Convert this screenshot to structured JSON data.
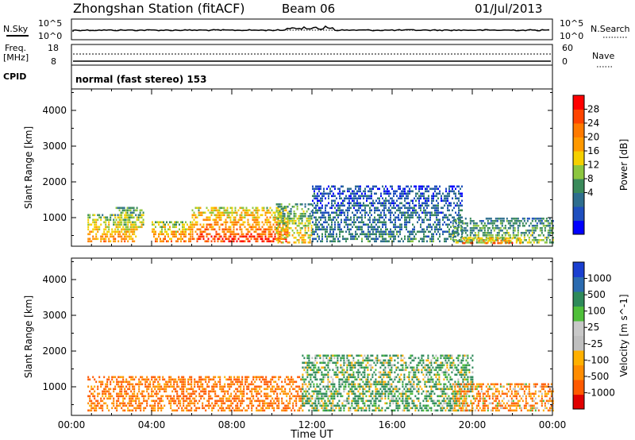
{
  "header": {
    "station": "Zhongshan Station (fitACF)",
    "beam": "Beam 06",
    "date": "01/Jul/2013"
  },
  "top_panels": {
    "nsky_label": "N.Sky",
    "nsky_ticks": [
      "10^5",
      "10^0"
    ],
    "nsearch_label": "N.Search",
    "nsearch_ticks": [
      "10^5",
      "10^0"
    ],
    "freq_label": "Freq.",
    "freq_unit": "[MHz]",
    "freq_ticks": [
      "18",
      "8"
    ],
    "nave_label": "Nave",
    "nave_ticks": [
      "60",
      "0"
    ],
    "cpid_label": "CPID",
    "cpid_value": "normal (fast stereo) 153"
  },
  "colors": {
    "power_scale": [
      "#0000ff",
      "#1f4fbf",
      "#2e6e8e",
      "#3a8a5a",
      "#8cc63f",
      "#f5d000",
      "#ff9900",
      "#ff7a00",
      "#ff4400",
      "#ff0000"
    ],
    "velocity_scale": [
      "#e00000",
      "#ff5a00",
      "#ff8c00",
      "#ffb000",
      "#bfbfbf",
      "#c8c8c8",
      "#4fbf3a",
      "#2e8a5a",
      "#2b6bb0",
      "#1a3fd0"
    ]
  },
  "chart_data": [
    {
      "type": "heatmap",
      "title": "Power",
      "xlabel": "Time UT",
      "ylabel": "Slant Range [km]",
      "x_ticks": [
        "00:00",
        "04:00",
        "08:00",
        "12:00",
        "16:00",
        "20:00",
        "00:00"
      ],
      "y_ticks": [
        "1000",
        "2000",
        "3000",
        "4000"
      ],
      "xlim_hours": [
        0,
        24
      ],
      "ylim_km": [
        200,
        4600
      ],
      "colorbar_label": "Power [dB]",
      "colorbar_ticks": [
        "28",
        "24",
        "20",
        "16",
        "12",
        "8",
        "4"
      ],
      "colorbar_range": [
        0,
        30
      ],
      "scatter_regions": [
        {
          "t0": 0.8,
          "t1": 3.2,
          "r0": 300,
          "r1": 1100,
          "level": 22
        },
        {
          "t0": 2.2,
          "t1": 3.6,
          "r0": 600,
          "r1": 1300,
          "level": 18
        },
        {
          "t0": 4.0,
          "t1": 6.0,
          "r0": 300,
          "r1": 900,
          "level": 24
        },
        {
          "t0": 6.0,
          "t1": 10.8,
          "r0": 300,
          "r1": 1300,
          "level": 27
        },
        {
          "t0": 10.2,
          "t1": 12.0,
          "r0": 300,
          "r1": 1400,
          "level": 18
        },
        {
          "t0": 12.0,
          "t1": 19.5,
          "r0": 300,
          "r1": 1900,
          "level": 9
        },
        {
          "t0": 19.0,
          "t1": 24.0,
          "r0": 300,
          "r1": 1000,
          "level": 14
        },
        {
          "t0": 19.5,
          "t1": 22.5,
          "r0": 250,
          "r1": 450,
          "level": 28
        }
      ]
    },
    {
      "type": "heatmap",
      "title": "Velocity",
      "xlabel": "Time UT",
      "ylabel": "Slant Range [km]",
      "x_ticks": [
        "00:00",
        "04:00",
        "08:00",
        "12:00",
        "16:00",
        "20:00",
        "00:00"
      ],
      "y_ticks": [
        "1000",
        "2000",
        "3000",
        "4000"
      ],
      "xlim_hours": [
        0,
        24
      ],
      "ylim_km": [
        200,
        4600
      ],
      "colorbar_label": "Velocity [m s^-1]",
      "colorbar_ticks": [
        "1000",
        "500",
        "100",
        "25",
        "-25",
        "-100",
        "-500",
        "-1000"
      ],
      "scatter_regions": [
        {
          "t0": 0.8,
          "t1": 11.5,
          "r0": 300,
          "r1": 1300,
          "velocity": -300
        },
        {
          "t0": 11.5,
          "t1": 20.0,
          "r0": 300,
          "r1": 1900,
          "velocity": 150
        },
        {
          "t0": 19.0,
          "t1": 24.0,
          "r0": 300,
          "r1": 1100,
          "velocity": -200
        }
      ]
    }
  ]
}
